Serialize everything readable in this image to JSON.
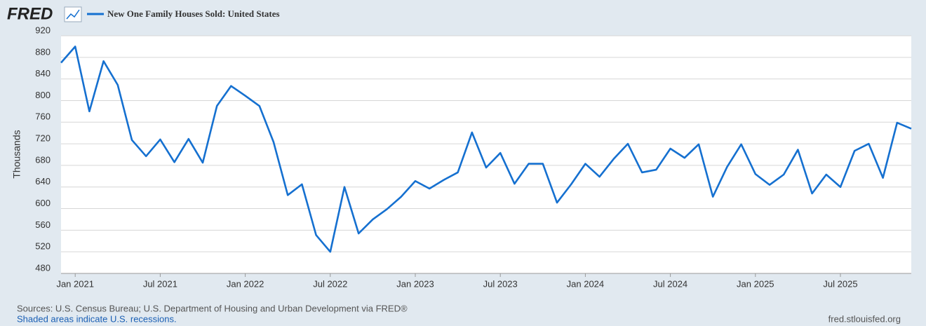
{
  "chart_data": {
    "type": "line",
    "logo": "FRED",
    "y_label": "Thousands",
    "source": "Sources: U.S. Census Bureau; U.S. Department of Housing and Urban Development via FRED®",
    "note": "Shaded areas indicate U.S. recessions.",
    "credit": "fred.stlouisfed.org",
    "x": [
      "2020-12",
      "2021-01",
      "2021-02",
      "2021-03",
      "2021-04",
      "2021-05",
      "2021-06",
      "2021-07",
      "2021-08",
      "2021-09",
      "2021-10",
      "2021-11",
      "2021-12",
      "2022-01",
      "2022-02",
      "2022-03",
      "2022-04",
      "2022-05",
      "2022-06",
      "2022-07",
      "2022-08",
      "2022-09",
      "2022-10",
      "2022-11",
      "2022-12",
      "2023-01",
      "2023-02",
      "2023-03",
      "2023-04",
      "2023-05",
      "2023-06",
      "2023-07",
      "2023-08",
      "2023-09",
      "2023-10",
      "2023-11",
      "2023-12",
      "2024-01",
      "2024-02",
      "2024-03",
      "2024-04",
      "2024-05",
      "2024-06",
      "2024-07",
      "2024-08",
      "2024-09",
      "2024-10",
      "2024-11",
      "2024-12",
      "2025-01",
      "2025-02",
      "2025-03",
      "2025-04",
      "2025-05",
      "2025-06",
      "2025-07",
      "2025-08",
      "2025-09",
      "2025-10",
      "2025-11",
      "2025-12"
    ],
    "series": [
      {
        "name": "New One Family Houses Sold: United States",
        "color": "#1570d0",
        "values": [
          870,
          900,
          780,
          873,
          829,
          727,
          697,
          728,
          686,
          729,
          685,
          790,
          827,
          809,
          790,
          723,
          625,
          645,
          551,
          520,
          640,
          554,
          580,
          599,
          622,
          651,
          637,
          653,
          667,
          741,
          676,
          703,
          646,
          683,
          683,
          611,
          645,
          683,
          659,
          692,
          720,
          667,
          672,
          711,
          694,
          719,
          622,
          677,
          719,
          664,
          644,
          663,
          709,
          628,
          663,
          640,
          707,
          720,
          657,
          759,
          748
        ]
      }
    ],
    "xlim": [
      "2020-12",
      "2025-12"
    ],
    "xticks": [
      {
        "value": "2021-01",
        "label": "Jan 2021"
      },
      {
        "value": "2021-07",
        "label": "Jul 2021"
      },
      {
        "value": "2022-01",
        "label": "Jan 2022"
      },
      {
        "value": "2022-07",
        "label": "Jul 2022"
      },
      {
        "value": "2023-01",
        "label": "Jan 2023"
      },
      {
        "value": "2023-07",
        "label": "Jul 2023"
      },
      {
        "value": "2024-01",
        "label": "Jan 2024"
      },
      {
        "value": "2024-07",
        "label": "Jul 2024"
      },
      {
        "value": "2025-01",
        "label": "Jan 2025"
      },
      {
        "value": "2025-07",
        "label": "Jul 2025"
      }
    ],
    "ylim": [
      480,
      920
    ],
    "yticks": [
      480,
      520,
      560,
      600,
      640,
      680,
      720,
      760,
      800,
      840,
      880,
      920
    ],
    "grid": true
  }
}
